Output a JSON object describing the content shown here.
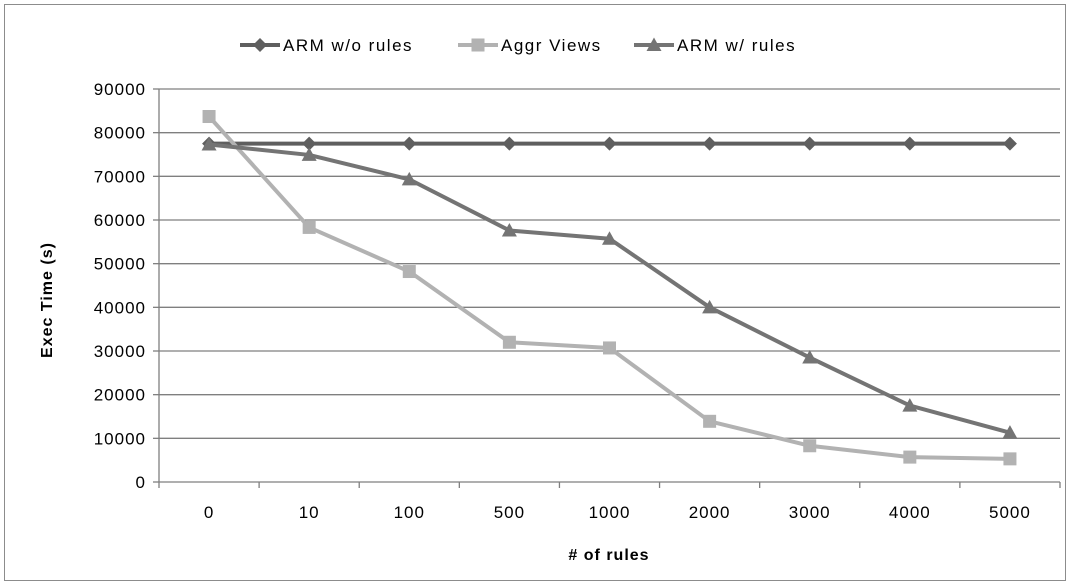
{
  "chart_data": {
    "type": "line",
    "title": "",
    "xlabel": "# of rules",
    "ylabel": "Exec Time (s)",
    "categories": [
      "0",
      "10",
      "100",
      "500",
      "1000",
      "2000",
      "3000",
      "4000",
      "5000"
    ],
    "ylim": [
      0,
      90000
    ],
    "yticks": [
      0,
      10000,
      20000,
      30000,
      40000,
      50000,
      60000,
      70000,
      80000,
      90000
    ],
    "ytick_labels": [
      "0",
      "10000",
      "20000",
      "30000",
      "40000",
      "50000",
      "60000",
      "70000",
      "80000",
      "90000"
    ],
    "grid": true,
    "legend_position": "top",
    "series": [
      {
        "name": "ARM w/o rules",
        "marker": "diamond",
        "color": "#5f5f5f",
        "values": [
          77500,
          77500,
          77500,
          77500,
          77500,
          77500,
          77500,
          77500,
          77500
        ]
      },
      {
        "name": "Aggr Views",
        "marker": "square",
        "color": "#b2b2b2",
        "values": [
          83700,
          58300,
          48200,
          32000,
          30700,
          13900,
          8300,
          5700,
          5300
        ]
      },
      {
        "name": "ARM w/ rules",
        "marker": "triangle",
        "color": "#747474",
        "values": [
          77300,
          74900,
          69300,
          57600,
          55700,
          40000,
          28500,
          17500,
          11300
        ]
      }
    ]
  }
}
